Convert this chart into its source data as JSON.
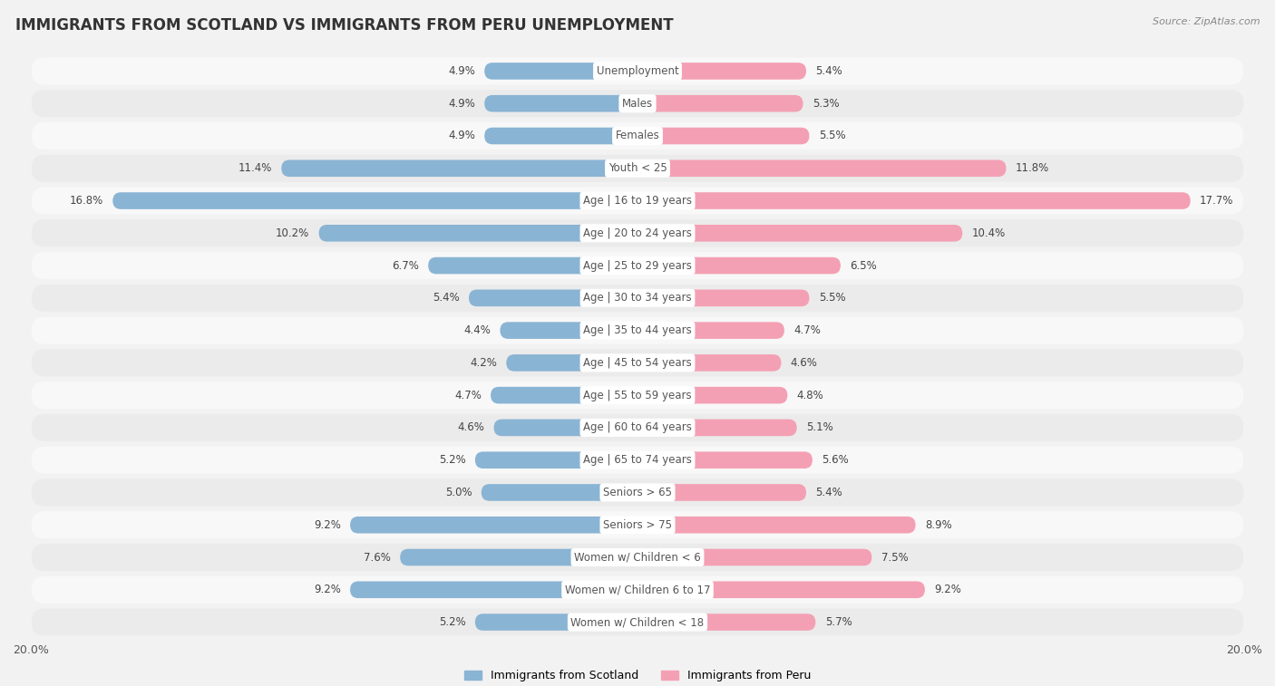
{
  "title": "IMMIGRANTS FROM SCOTLAND VS IMMIGRANTS FROM PERU UNEMPLOYMENT",
  "source": "Source: ZipAtlas.com",
  "categories": [
    "Unemployment",
    "Males",
    "Females",
    "Youth < 25",
    "Age | 16 to 19 years",
    "Age | 20 to 24 years",
    "Age | 25 to 29 years",
    "Age | 30 to 34 years",
    "Age | 35 to 44 years",
    "Age | 45 to 54 years",
    "Age | 55 to 59 years",
    "Age | 60 to 64 years",
    "Age | 65 to 74 years",
    "Seniors > 65",
    "Seniors > 75",
    "Women w/ Children < 6",
    "Women w/ Children 6 to 17",
    "Women w/ Children < 18"
  ],
  "scotland_values": [
    4.9,
    4.9,
    4.9,
    11.4,
    16.8,
    10.2,
    6.7,
    5.4,
    4.4,
    4.2,
    4.7,
    4.6,
    5.2,
    5.0,
    9.2,
    7.6,
    9.2,
    5.2
  ],
  "peru_values": [
    5.4,
    5.3,
    5.5,
    11.8,
    17.7,
    10.4,
    6.5,
    5.5,
    4.7,
    4.6,
    4.8,
    5.1,
    5.6,
    5.4,
    8.9,
    7.5,
    9.2,
    5.7
  ],
  "scotland_color": "#8ab4d4",
  "peru_color": "#f4a0b4",
  "axis_limit": 20.0,
  "bg_color": "#f2f2f2",
  "row_color_light": "#f8f8f8",
  "row_color_dark": "#ebebeb",
  "title_fontsize": 12,
  "label_fontsize": 8.5,
  "value_fontsize": 8.5,
  "legend_scotland": "Immigrants from Scotland",
  "legend_peru": "Immigrants from Peru"
}
